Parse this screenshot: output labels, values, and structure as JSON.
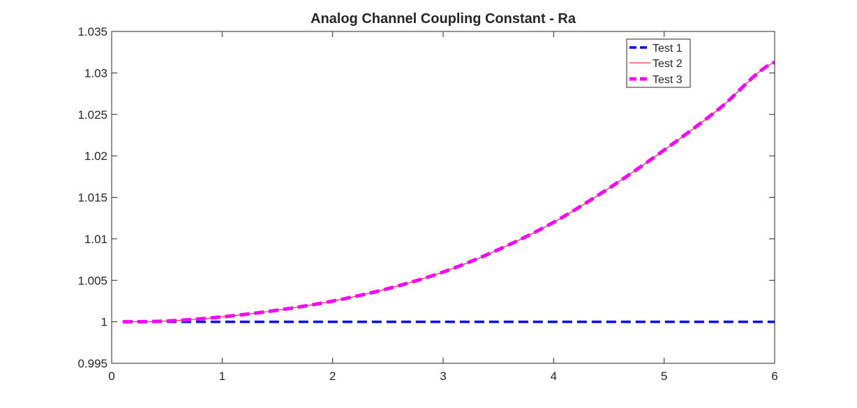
{
  "chart_data": {
    "type": "line",
    "title": "Analog Channel Coupling Constant - Ra",
    "xlabel": "",
    "ylabel": "",
    "xlim": [
      0,
      6
    ],
    "ylim": [
      0.995,
      1.035
    ],
    "x_ticks": [
      "0",
      "1",
      "2",
      "3",
      "4",
      "5",
      "6"
    ],
    "y_ticks": [
      "0.995",
      "1",
      "1.005",
      "1.01",
      "1.015",
      "1.02",
      "1.025",
      "1.03",
      "1.035"
    ],
    "x_tick_values": [
      0,
      1,
      2,
      3,
      4,
      5,
      6
    ],
    "y_tick_values": [
      0.995,
      1.0,
      1.005,
      1.01,
      1.015,
      1.02,
      1.025,
      1.03,
      1.035
    ],
    "grid": false,
    "legend_placement": "top-right",
    "series": [
      {
        "name": "Test 1",
        "color": "#0000ff",
        "style": "dashed",
        "x": [
          0.1,
          0.5,
          1,
          1.5,
          2,
          2.5,
          3,
          3.5,
          4,
          4.5,
          5,
          5.5,
          6
        ],
        "y": [
          1.0,
          1.0,
          1.0,
          1.0,
          1.0,
          1.0,
          1.0,
          1.0,
          1.0,
          1.0,
          1.0,
          1.0,
          1.0
        ]
      },
      {
        "name": "Test 2",
        "color": "#ff0000",
        "style": "solid",
        "x": [
          0.1,
          0.5,
          1,
          1.5,
          2,
          2.5,
          3,
          3.5,
          4,
          4.5,
          5,
          5.5,
          6
        ],
        "y": [
          1.0,
          1.0001,
          1.0006,
          1.0014,
          1.0025,
          1.004,
          1.006,
          1.0087,
          1.012,
          1.0161,
          1.0207,
          1.0257,
          1.0313
        ]
      },
      {
        "name": "Test 3",
        "color": "#ff00ff",
        "style": "dashed",
        "x": [
          0.1,
          0.5,
          1,
          1.5,
          2,
          2.5,
          3,
          3.5,
          4,
          4.5,
          5,
          5.5,
          6
        ],
        "y": [
          1.0,
          1.0001,
          1.0006,
          1.0014,
          1.0025,
          1.004,
          1.006,
          1.0087,
          1.012,
          1.0161,
          1.0207,
          1.0257,
          1.0313
        ]
      }
    ]
  }
}
